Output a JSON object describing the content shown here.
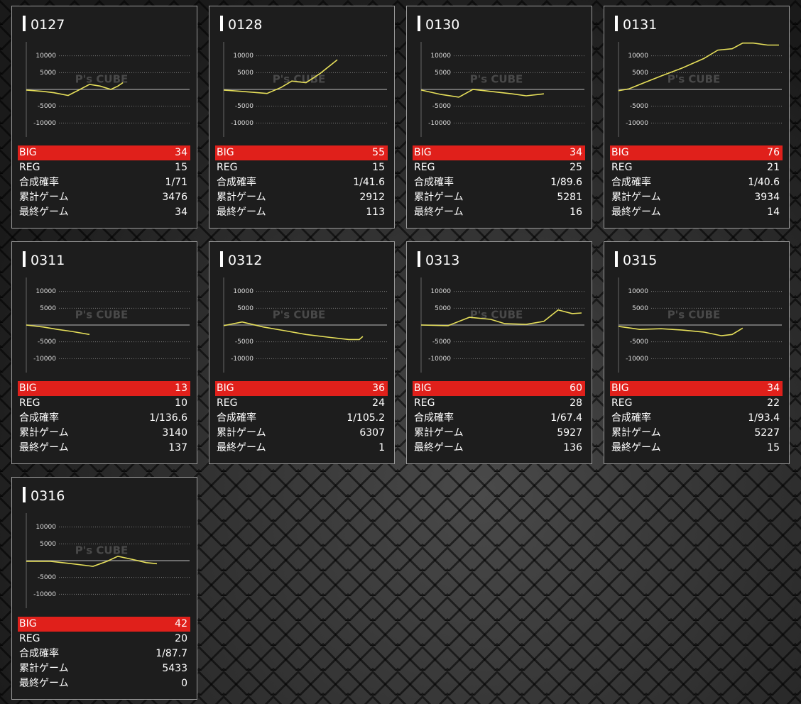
{
  "chart_data": [
    {
      "type": "line",
      "title": "0127",
      "x": [
        0,
        10.6,
        17.3,
        26.1,
        32.7,
        39.4,
        46,
        52.7,
        57.1,
        60.2
      ],
      "values": [
        -200,
        -600,
        -1000,
        -1800,
        -200,
        1500,
        1000,
        0,
        1000,
        2000
      ],
      "xlim": [
        0,
        100
      ],
      "ylim": [
        -15000,
        15000
      ],
      "yticks": [
        10000,
        5000,
        -5000,
        -10000
      ],
      "grid": true,
      "color": "#e6df5a",
      "watermark": "P's CUBE",
      "stats": {
        "labels": [
          "BIG",
          "REG",
          "合成確率",
          "累計ゲーム",
          "最終ゲーム"
        ],
        "values": [
          34,
          15,
          "1/71",
          3476,
          34
        ]
      }
    },
    {
      "type": "line",
      "title": "0128",
      "x": [
        0,
        11.5,
        27,
        35.8,
        42.5,
        51.3,
        60.2,
        70.8
      ],
      "values": [
        -200,
        -600,
        -1200,
        600,
        2500,
        2000,
        4800,
        8800
      ],
      "xlim": [
        0,
        100
      ],
      "ylim": [
        -15000,
        15000
      ],
      "yticks": [
        10000,
        5000,
        -5000,
        -10000
      ],
      "grid": true,
      "color": "#e6df5a",
      "watermark": "P's CUBE",
      "stats": {
        "labels": [
          "BIG",
          "REG",
          "合成確率",
          "累計ゲーム",
          "最終ゲーム"
        ],
        "values": [
          55,
          15,
          "1/41.6",
          2912,
          113
        ]
      }
    },
    {
      "type": "line",
      "title": "0130",
      "x": [
        0,
        12.4,
        23.5,
        32.3,
        43.4,
        56.6,
        65.5,
        76.5
      ],
      "values": [
        -200,
        -1500,
        -2300,
        0,
        -600,
        -1300,
        -1900,
        -1300
      ],
      "xlim": [
        0,
        100
      ],
      "ylim": [
        -15000,
        15000
      ],
      "yticks": [
        10000,
        5000,
        -5000,
        -10000
      ],
      "grid": true,
      "color": "#e6df5a",
      "watermark": "P's CUBE",
      "stats": {
        "labels": [
          "BIG",
          "REG",
          "合成確率",
          "累計ゲーム",
          "最終ゲーム"
        ],
        "values": [
          34,
          25,
          "1/89.6",
          5281,
          16
        ]
      }
    },
    {
      "type": "line",
      "title": "0131",
      "x": [
        0,
        6.6,
        15.5,
        26.5,
        39.8,
        53.1,
        61.9,
        70.8,
        77.4,
        84,
        92.9,
        100
      ],
      "values": [
        -400,
        200,
        1900,
        4000,
        6400,
        9200,
        11700,
        12100,
        13800,
        13800,
        13200,
        13200
      ],
      "xlim": [
        0,
        100
      ],
      "ylim": [
        -15000,
        15000
      ],
      "yticks": [
        10000,
        5000,
        -5000,
        -10000
      ],
      "grid": true,
      "color": "#e6df5a",
      "watermark": "P's CUBE",
      "stats": {
        "labels": [
          "BIG",
          "REG",
          "合成確率",
          "累計ゲーム",
          "最終ゲーム"
        ],
        "values": [
          76,
          21,
          "1/40.6",
          3934,
          14
        ]
      }
    },
    {
      "type": "line",
      "title": "0311",
      "x": [
        0,
        10.6,
        19.5,
        28.3,
        39.4
      ],
      "values": [
        0,
        -600,
        -1300,
        -1900,
        -2800
      ],
      "xlim": [
        0,
        100
      ],
      "ylim": [
        -15000,
        15000
      ],
      "yticks": [
        10000,
        5000,
        -5000,
        -10000
      ],
      "grid": true,
      "color": "#e6df5a",
      "watermark": "P's CUBE",
      "stats": {
        "labels": [
          "BIG",
          "REG",
          "合成確率",
          "累計ゲーム",
          "最終ゲーム"
        ],
        "values": [
          13,
          10,
          "1/136.6",
          3140,
          137
        ]
      }
    },
    {
      "type": "line",
      "title": "0312",
      "x": [
        0,
        11.5,
        24.8,
        38.1,
        51.3,
        64.6,
        77.9,
        84.5,
        86.7
      ],
      "values": [
        -200,
        900,
        -600,
        -1700,
        -2800,
        -3600,
        -4300,
        -4300,
        -3400
      ],
      "xlim": [
        0,
        100
      ],
      "ylim": [
        -15000,
        15000
      ],
      "yticks": [
        10000,
        5000,
        -5000,
        -10000
      ],
      "grid": true,
      "color": "#e6df5a",
      "watermark": "P's CUBE",
      "stats": {
        "labels": [
          "BIG",
          "REG",
          "合成確率",
          "累計ゲーム",
          "最終ゲーム"
        ],
        "values": [
          36,
          24,
          "1/105.2",
          6307,
          1
        ]
      }
    },
    {
      "type": "line",
      "title": "0313",
      "x": [
        0,
        16.8,
        30.1,
        43.4,
        52.2,
        65.5,
        76.5,
        85.4,
        94.2,
        100
      ],
      "values": [
        0,
        -200,
        2300,
        1700,
        400,
        200,
        1100,
        4500,
        3400,
        3600
      ],
      "xlim": [
        0,
        100
      ],
      "ylim": [
        -15000,
        15000
      ],
      "yticks": [
        10000,
        5000,
        -5000,
        -10000
      ],
      "grid": true,
      "color": "#e6df5a",
      "watermark": "P's CUBE",
      "stats": {
        "labels": [
          "BIG",
          "REG",
          "合成確率",
          "累計ゲーム",
          "最終ゲーム"
        ],
        "values": [
          60,
          28,
          "1/67.4",
          5927,
          136
        ]
      }
    },
    {
      "type": "line",
      "title": "0315",
      "x": [
        0,
        13.3,
        26.5,
        39.8,
        53.1,
        64.2,
        70.8,
        77.4
      ],
      "values": [
        -400,
        -1300,
        -1100,
        -1500,
        -2100,
        -3200,
        -2800,
        -900
      ],
      "xlim": [
        0,
        100
      ],
      "ylim": [
        -15000,
        15000
      ],
      "yticks": [
        10000,
        5000,
        -5000,
        -10000
      ],
      "grid": true,
      "color": "#e6df5a",
      "watermark": "P's CUBE",
      "stats": {
        "labels": [
          "BIG",
          "REG",
          "合成確率",
          "累計ゲーム",
          "最終ゲーム"
        ],
        "values": [
          34,
          22,
          "1/93.4",
          5227,
          15
        ]
      }
    },
    {
      "type": "line",
      "title": "0316",
      "x": [
        0,
        15,
        28.3,
        41.6,
        50.4,
        57.1,
        65.9,
        74.8,
        81.4
      ],
      "values": [
        -200,
        -200,
        -900,
        -1700,
        -200,
        1300,
        400,
        -600,
        -900
      ],
      "xlim": [
        0,
        100
      ],
      "ylim": [
        -15000,
        15000
      ],
      "yticks": [
        10000,
        5000,
        -5000,
        -10000
      ],
      "grid": true,
      "color": "#e6df5a",
      "watermark": "P's CUBE",
      "stats": {
        "labels": [
          "BIG",
          "REG",
          "合成確率",
          "累計ゲーム",
          "最終ゲーム"
        ],
        "values": [
          42,
          20,
          "1/87.7",
          5433,
          0
        ]
      }
    }
  ]
}
